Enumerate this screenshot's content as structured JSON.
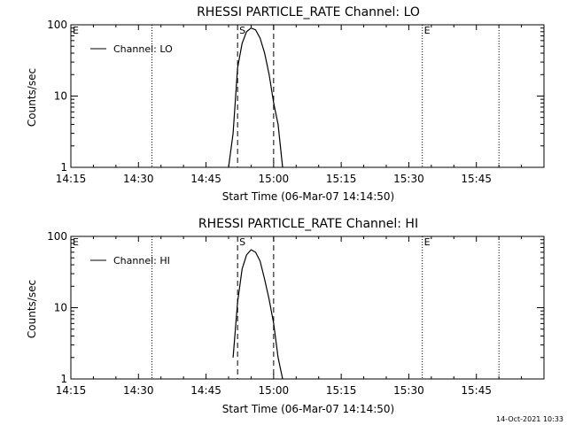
{
  "chart_data": [
    {
      "type": "line",
      "title": "RHESSI PARTICLE_RATE Channel: LO",
      "xlabel": "Start Time (06-Mar-07 14:14:50)",
      "ylabel": "Counts/sec",
      "xlim": [
        "14:15",
        "16:00"
      ],
      "xticks": [
        "14:15",
        "14:30",
        "14:45",
        "15:00",
        "15:15",
        "15:30",
        "15:45"
      ],
      "yscale": "log",
      "ylim": [
        1,
        100
      ],
      "yticks": [
        "1",
        "10",
        "100"
      ],
      "legend": {
        "position": "top-left",
        "label": "Channel: LO"
      },
      "markers": [
        {
          "label": "E",
          "time": "14:15",
          "style": "none"
        },
        {
          "label": "",
          "time": "14:33",
          "style": "dotted"
        },
        {
          "label": "S",
          "time": "14:52",
          "style": "dashed"
        },
        {
          "label": "",
          "time": "15:00",
          "style": "dashed"
        },
        {
          "label": "E",
          "time": "15:33",
          "style": "dotted"
        },
        {
          "label": "",
          "time": "15:50",
          "style": "dotted"
        }
      ],
      "series": [
        {
          "name": "Channel: LO",
          "x": [
            "14:50",
            "14:51",
            "14:52",
            "14:53",
            "14:54",
            "14:55",
            "14:56",
            "14:57",
            "14:58",
            "14:59",
            "15:00",
            "15:01",
            "15:02"
          ],
          "y": [
            1,
            3,
            25,
            55,
            80,
            90,
            85,
            65,
            40,
            20,
            8,
            4,
            1
          ]
        }
      ]
    },
    {
      "type": "line",
      "title": "RHESSI PARTICLE_RATE Channel: HI",
      "xlabel": "Start Time (06-Mar-07 14:14:50)",
      "ylabel": "Counts/sec",
      "xlim": [
        "14:15",
        "16:00"
      ],
      "xticks": [
        "14:15",
        "14:30",
        "14:45",
        "15:00",
        "15:15",
        "15:30",
        "15:45"
      ],
      "yscale": "log",
      "ylim": [
        1,
        100
      ],
      "yticks": [
        "1",
        "10",
        "100"
      ],
      "legend": {
        "position": "top-left",
        "label": "Channel: HI"
      },
      "markers": [
        {
          "label": "E",
          "time": "14:15",
          "style": "none"
        },
        {
          "label": "",
          "time": "14:33",
          "style": "dotted"
        },
        {
          "label": "S",
          "time": "14:52",
          "style": "dashed"
        },
        {
          "label": "",
          "time": "15:00",
          "style": "dashed"
        },
        {
          "label": "E",
          "time": "15:33",
          "style": "dotted"
        },
        {
          "label": "",
          "time": "15:50",
          "style": "dotted"
        }
      ],
      "series": [
        {
          "name": "Channel: HI",
          "x": [
            "14:51",
            "14:52",
            "14:53",
            "14:54",
            "14:55",
            "14:56",
            "14:57",
            "14:58",
            "14:59",
            "15:00",
            "15:01",
            "15:02"
          ],
          "y": [
            2,
            12,
            35,
            55,
            65,
            60,
            45,
            25,
            13,
            6,
            2,
            1
          ]
        }
      ]
    }
  ],
  "footer": {
    "timestamp": "14-Oct-2021 10:33"
  }
}
